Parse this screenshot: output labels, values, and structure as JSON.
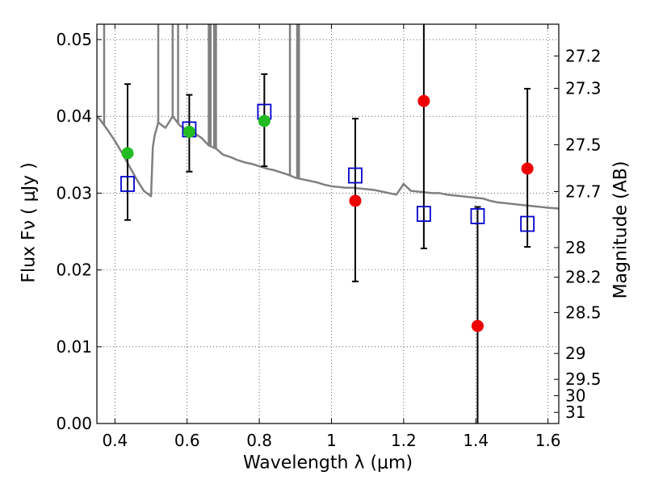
{
  "chart_data": {
    "type": "scatter",
    "xlabel": "Wavelength  λ (μm)",
    "ylabel": "Flux  Fν  ( μJy )",
    "ylabel_right": "Magnitude (AB)",
    "xlim": [
      0.35,
      1.63
    ],
    "ylim": [
      0.0,
      0.052
    ],
    "x_ticks": [
      0.4,
      0.6,
      0.8,
      1.0,
      1.2,
      1.4,
      1.6
    ],
    "x_tick_labels": [
      "0.4",
      "0.6",
      "0.8",
      "1",
      "1.2",
      "1.4",
      "1.6"
    ],
    "y_ticks": [
      0.0,
      0.01,
      0.02,
      0.03,
      0.04,
      0.05
    ],
    "y_tick_labels": [
      "0.00",
      "0.01",
      "0.02",
      "0.03",
      "0.04",
      "0.05"
    ],
    "right_ticks": [
      {
        "mag": 27.2,
        "label": "27.2"
      },
      {
        "mag": 27.3,
        "label": "27.3"
      },
      {
        "mag": 27.5,
        "label": "27.5"
      },
      {
        "mag": 27.7,
        "label": "27.7"
      },
      {
        "mag": 28.0,
        "label": "28"
      },
      {
        "mag": 28.2,
        "label": "28.2"
      },
      {
        "mag": 28.5,
        "label": "28.5"
      },
      {
        "mag": 29.0,
        "label": "29"
      },
      {
        "mag": 29.5,
        "label": "29.5"
      },
      {
        "mag": 30.0,
        "label": "30"
      },
      {
        "mag": 31.0,
        "label": "31"
      }
    ],
    "grid": true,
    "grid_style": "dotted",
    "series": [
      {
        "kind": "model-spectrum",
        "color": "#808080",
        "x": [
          0.35,
          0.36,
          0.38,
          0.4,
          0.42,
          0.44,
          0.46,
          0.48,
          0.5,
          0.505,
          0.51,
          0.52,
          0.54,
          0.56,
          0.58,
          0.6,
          0.62,
          0.64,
          0.66,
          0.68,
          0.7,
          0.72,
          0.74,
          0.76,
          0.78,
          0.8,
          0.82,
          0.84,
          0.86,
          0.88,
          0.9,
          0.92,
          0.94,
          0.96,
          0.98,
          1.0,
          1.02,
          1.04,
          1.06,
          1.08,
          1.1,
          1.12,
          1.14,
          1.16,
          1.18,
          1.2,
          1.22,
          1.24,
          1.26,
          1.28,
          1.3,
          1.32,
          1.34,
          1.36,
          1.38,
          1.4,
          1.42,
          1.44,
          1.46,
          1.48,
          1.5,
          1.52,
          1.54,
          1.56,
          1.58,
          1.6,
          1.63
        ],
        "y": [
          0.04,
          0.0395,
          0.0382,
          0.0368,
          0.0352,
          0.0335,
          0.0318,
          0.0303,
          0.0296,
          0.036,
          0.0375,
          0.0392,
          0.0385,
          0.04,
          0.0388,
          0.0382,
          0.0378,
          0.0372,
          0.0362,
          0.0358,
          0.035,
          0.0347,
          0.0343,
          0.034,
          0.0338,
          0.0335,
          0.0332,
          0.033,
          0.0327,
          0.0324,
          0.032,
          0.0318,
          0.0316,
          0.0314,
          0.0311,
          0.0309,
          0.0308,
          0.0307,
          0.0307,
          0.0306,
          0.0305,
          0.0304,
          0.0302,
          0.03,
          0.0298,
          0.0312,
          0.0303,
          0.0302,
          0.0301,
          0.03,
          0.03,
          0.0298,
          0.0297,
          0.0296,
          0.0295,
          0.0294,
          0.0293,
          0.029,
          0.0288,
          0.0287,
          0.0286,
          0.0285,
          0.0284,
          0.0283,
          0.0282,
          0.0281,
          0.028
        ]
      },
      {
        "kind": "model-photometry",
        "marker": "open-square",
        "color": "#0000cc",
        "x": [
          0.435,
          0.606,
          0.814,
          1.066,
          1.256,
          1.405,
          1.543
        ],
        "y": [
          0.0312,
          0.0383,
          0.0406,
          0.0323,
          0.0273,
          0.027,
          0.026
        ]
      },
      {
        "kind": "detections",
        "marker": "filled-circle",
        "color": "#22bb22",
        "x": [
          0.435,
          0.606,
          0.814
        ],
        "y": [
          0.0352,
          0.038,
          0.0394
        ]
      },
      {
        "kind": "detections",
        "marker": "filled-circle",
        "color": "#ee0000",
        "x": [
          1.066,
          1.256,
          1.405,
          1.543
        ],
        "y": [
          0.029,
          0.042,
          0.0127,
          0.0332
        ]
      }
    ],
    "error_bars": {
      "color": "#000000",
      "x": [
        0.435,
        0.606,
        0.814,
        1.066,
        1.256,
        1.405,
        1.543
      ],
      "low": [
        0.0265,
        0.0328,
        0.0335,
        0.0185,
        0.0228,
        0.0,
        0.023
      ],
      "high": [
        0.0442,
        0.0428,
        0.0455,
        0.0397,
        0.052,
        0.0282,
        0.0436
      ]
    }
  }
}
